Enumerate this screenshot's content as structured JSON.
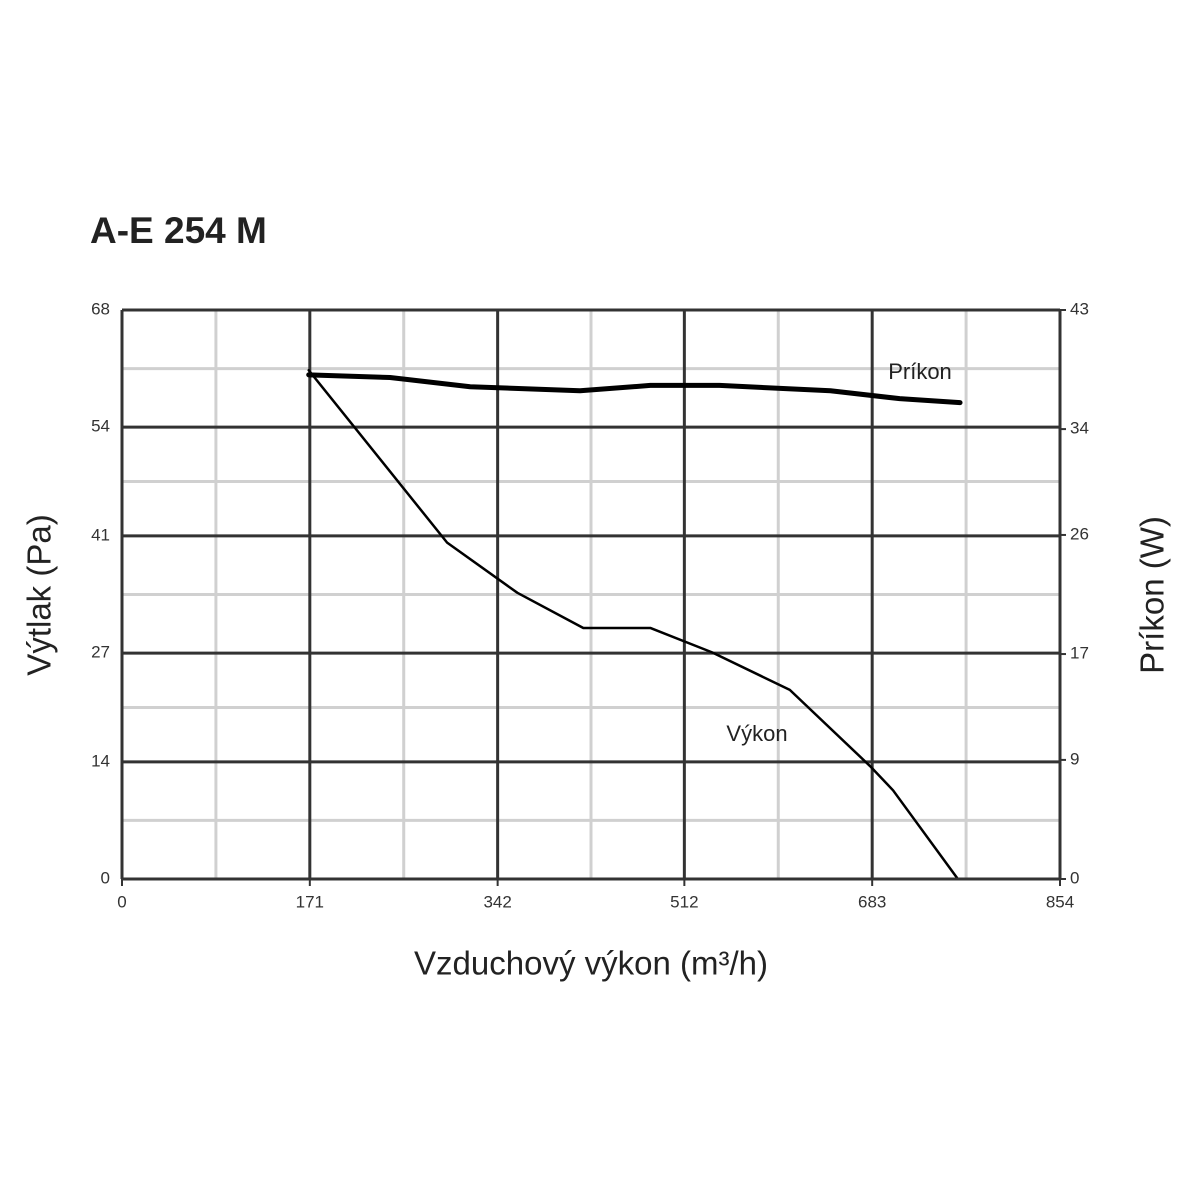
{
  "chart_data": {
    "type": "line",
    "title": "A-E 254 M",
    "x_label": "Vzduchový výkon (m³/h)",
    "y_label": "Výtlak (Pa)",
    "y2_label": "Príkon (W)",
    "xlim": [
      0,
      854
    ],
    "xticks": [
      0,
      171,
      342,
      512,
      683,
      854
    ],
    "ylim": [
      0,
      68
    ],
    "yticks": [
      0,
      14,
      27,
      41,
      54,
      68
    ],
    "y2lim": [
      0,
      43
    ],
    "y2ticks": [
      0,
      9,
      17,
      26,
      34,
      43
    ],
    "grid": true,
    "minor_grid": true,
    "series": [
      {
        "name": "Výkon",
        "color": "#000000",
        "axis": "y",
        "x": [
          170,
          296,
          360,
          420,
          481,
          537,
          608,
          681,
          702,
          761
        ],
        "values": [
          60.8,
          40.2,
          34.2,
          30,
          30,
          27.1,
          22.6,
          13.5,
          10.6,
          0
        ]
      },
      {
        "name": "Príkon",
        "color": "#000000",
        "axis": "y2",
        "x": [
          170,
          244,
          317,
          417,
          481,
          544,
          645,
          708,
          763
        ],
        "values": [
          38.1,
          37.9,
          37.2,
          36.9,
          37.3,
          37.3,
          36.9,
          36.3,
          36.0
        ]
      }
    ]
  }
}
